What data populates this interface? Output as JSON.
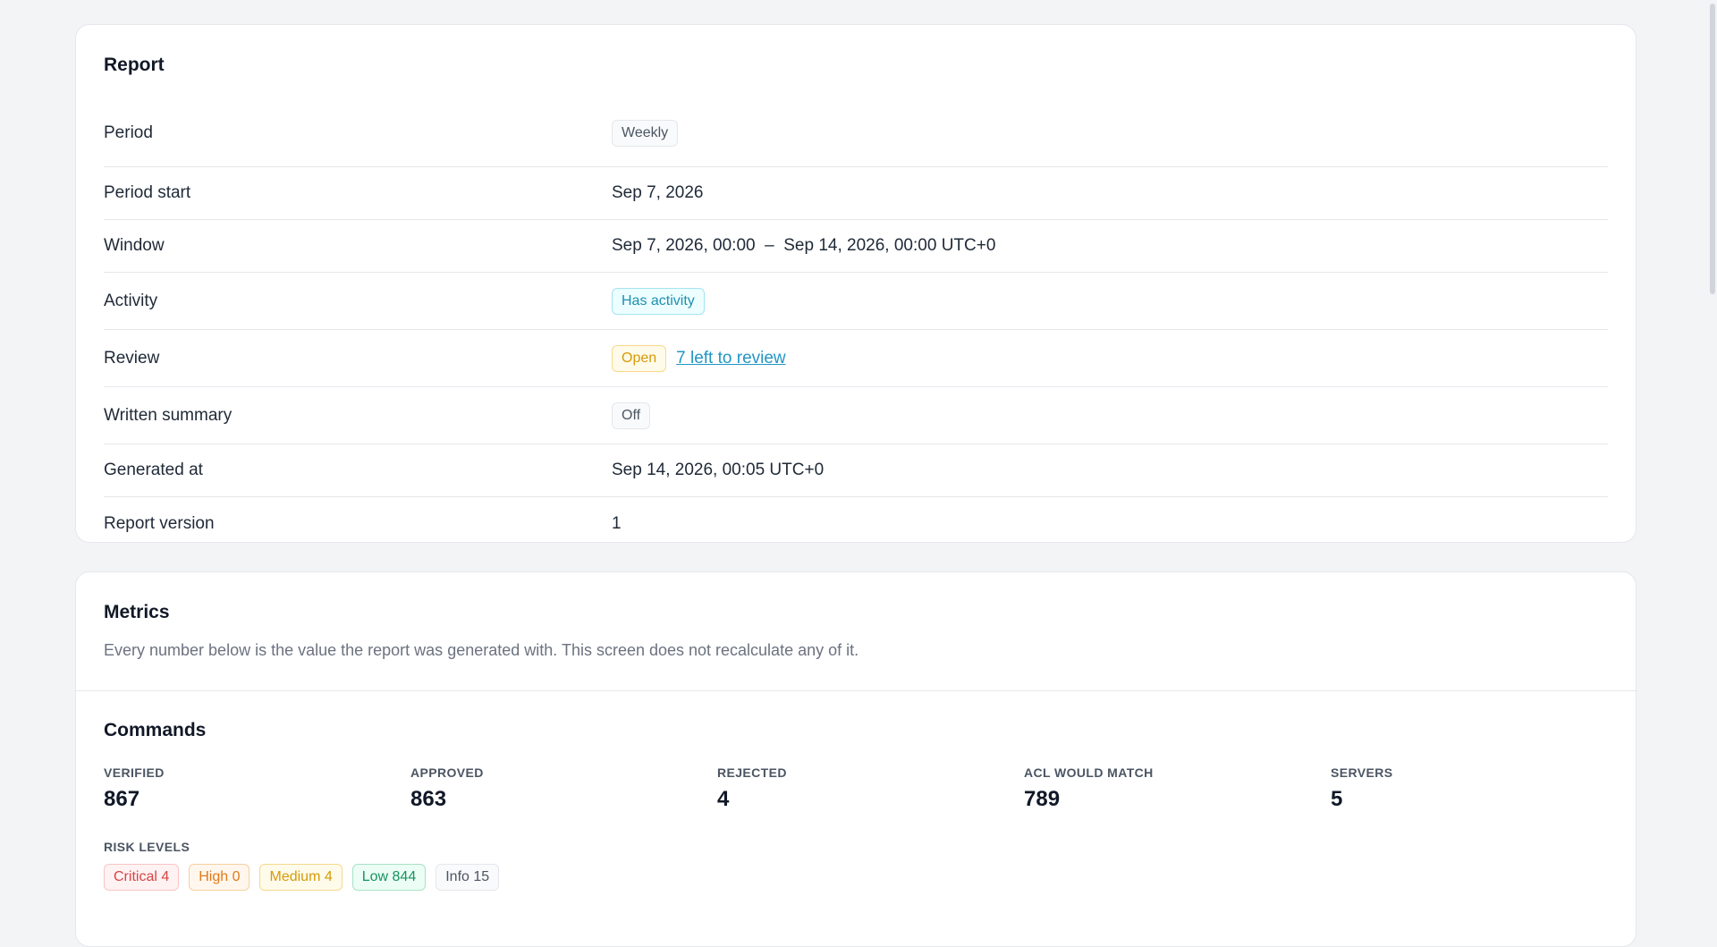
{
  "report": {
    "title": "Report",
    "rows": [
      {
        "label": "Period",
        "badge": "Weekly"
      },
      {
        "label": "Period start",
        "value": "Sep 7, 2026"
      },
      {
        "label": "Window",
        "value": "Sep 7, 2026, 00:00  –  Sep 14, 2026, 00:00 UTC+0"
      },
      {
        "label": "Activity",
        "badge": "Has activity"
      },
      {
        "label": "Review",
        "badge": "Open",
        "link": "7 left to review"
      },
      {
        "label": "Written summary",
        "badge": "Off"
      },
      {
        "label": "Generated at",
        "value": "Sep 14, 2026, 00:05 UTC+0"
      },
      {
        "label": "Report version",
        "value": "1"
      }
    ]
  },
  "metrics": {
    "title": "Metrics",
    "description": "Every number below is the value the report was generated with. This screen does not recalculate any of it.",
    "commands": {
      "title": "Commands",
      "stats": [
        {
          "label": "VERIFIED",
          "value": "867"
        },
        {
          "label": "APPROVED",
          "value": "863"
        },
        {
          "label": "REJECTED",
          "value": "4"
        },
        {
          "label": "ACL WOULD MATCH",
          "value": "789"
        },
        {
          "label": "SERVERS",
          "value": "5"
        }
      ],
      "risk_label": "RISK LEVELS",
      "risk_levels": [
        {
          "text": "Critical 4"
        },
        {
          "text": "High 0"
        },
        {
          "text": "Medium 4"
        },
        {
          "text": "Low 844"
        },
        {
          "text": "Info 15"
        }
      ]
    }
  }
}
